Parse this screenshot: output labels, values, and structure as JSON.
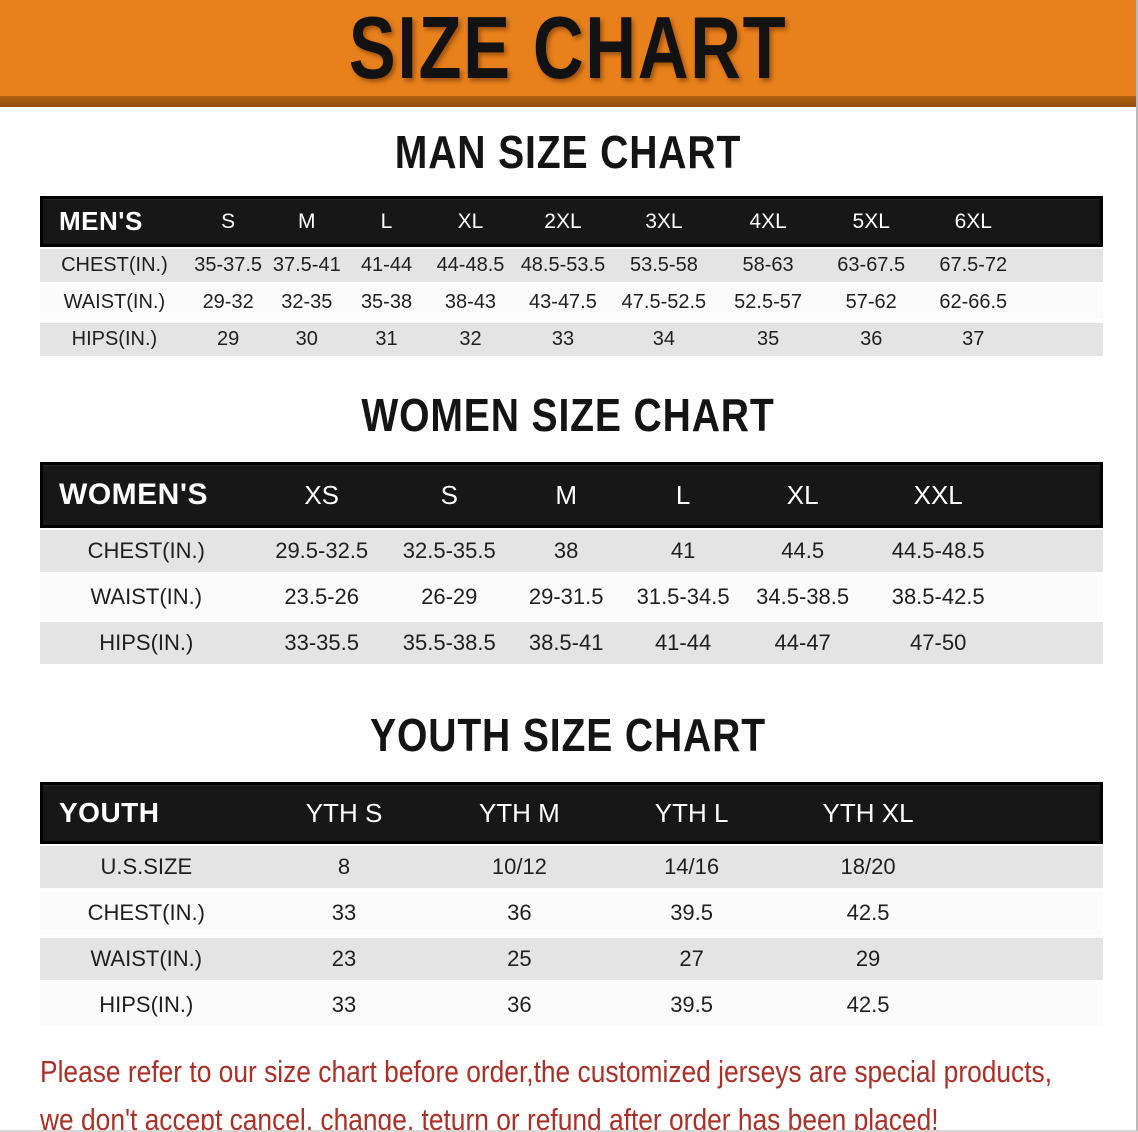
{
  "banner": {
    "title": "SIZE CHART"
  },
  "colors": {
    "banner_orange": "#e8811b",
    "banner_shadow": "#b2620f",
    "header_black": "#171717",
    "stripe_gray": "#e4e4e4",
    "disclaimer_red": "#a93128"
  },
  "sections": [
    {
      "heading": "MAN SIZE CHART",
      "table": {
        "header_label": "MEN'S",
        "columns": [
          "S",
          "M",
          "L",
          "XL",
          "2XL",
          "3XL",
          "4XL",
          "5XL",
          "6XL"
        ],
        "rows": [
          {
            "label": "CHEST(IN.)",
            "values": [
              "35-37.5",
              "37.5-41",
              "41-44",
              "44-48.5",
              "48.5-53.5",
              "53.5-58",
              "58-63",
              "63-67.5",
              "67.5-72"
            ]
          },
          {
            "label": "WAIST(IN.)",
            "values": [
              "29-32",
              "32-35",
              "35-38",
              "38-43",
              "43-47.5",
              "47.5-52.5",
              "52.5-57",
              "57-62",
              "62-66.5"
            ]
          },
          {
            "label": "HIPS(IN.)",
            "values": [
              "29",
              "30",
              "31",
              "32",
              "33",
              "34",
              "35",
              "36",
              "37"
            ]
          }
        ]
      }
    },
    {
      "heading": "WOMEN SIZE CHART",
      "table": {
        "header_label": "WOMEN'S",
        "columns": [
          "XS",
          "S",
          "M",
          "L",
          "XL",
          "XXL"
        ],
        "rows": [
          {
            "label": "CHEST(IN.)",
            "values": [
              "29.5-32.5",
              "32.5-35.5",
              "38",
              "41",
              "44.5",
              "44.5-48.5"
            ]
          },
          {
            "label": "WAIST(IN.)",
            "values": [
              "23.5-26",
              "26-29",
              "29-31.5",
              "31.5-34.5",
              "34.5-38.5",
              "38.5-42.5"
            ]
          },
          {
            "label": "HIPS(IN.)",
            "values": [
              "33-35.5",
              "35.5-38.5",
              "38.5-41",
              "41-44",
              "44-47",
              "47-50"
            ]
          }
        ]
      }
    },
    {
      "heading": "YOUTH SIZE CHART",
      "table": {
        "header_label": "YOUTH",
        "columns": [
          "YTH S",
          "YTH M",
          "YTH L",
          "YTH XL"
        ],
        "rows": [
          {
            "label": "U.S.SIZE",
            "values": [
              "8",
              "10/12",
              "14/16",
              "18/20"
            ]
          },
          {
            "label": "CHEST(IN.)",
            "values": [
              "33",
              "36",
              "39.5",
              "42.5"
            ]
          },
          {
            "label": "WAIST(IN.)",
            "values": [
              "23",
              "25",
              "27",
              "29"
            ]
          },
          {
            "label": "HIPS(IN.)",
            "values": [
              "33",
              "36",
              "39.5",
              "42.5"
            ]
          }
        ]
      }
    }
  ],
  "disclaimer": {
    "line1": "Please refer to our size chart before order,the customized jerseys are special products,",
    "line2": "we don't accept cancel, change, teturn or refund after order has been placed!"
  }
}
